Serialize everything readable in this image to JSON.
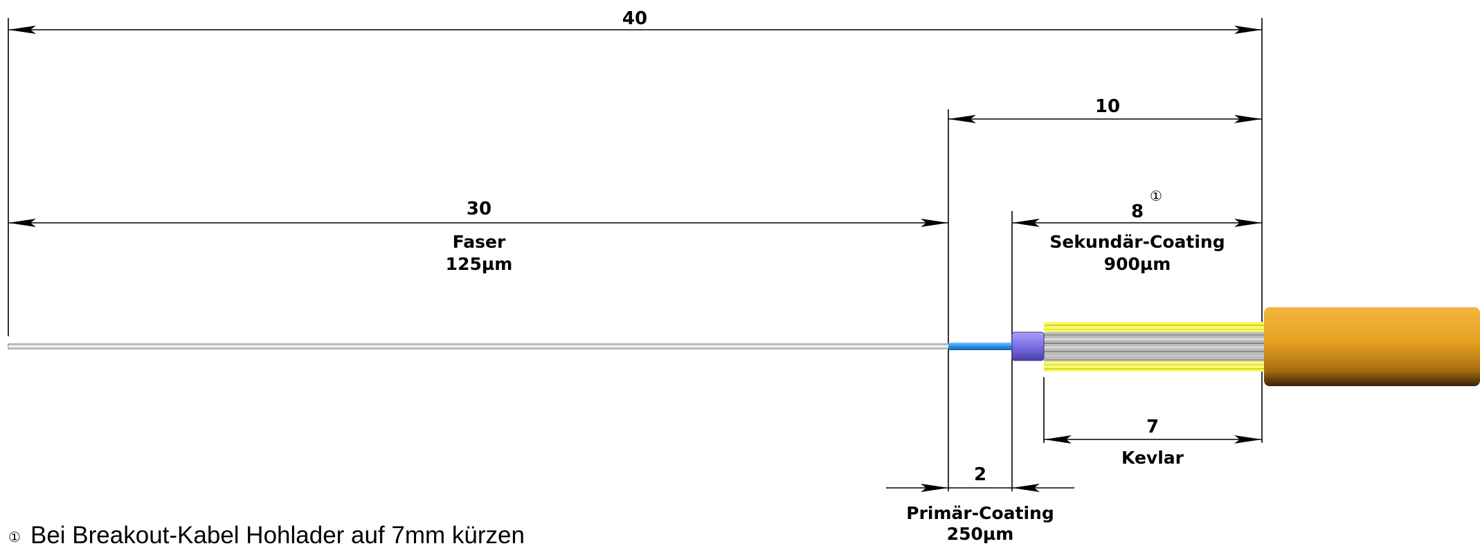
{
  "dimensions": {
    "total": {
      "value": "40"
    },
    "strip": {
      "value": "10"
    },
    "fiber": {
      "value": "30",
      "label": "Faser",
      "size": "125µm"
    },
    "secondary_coating": {
      "value": "8",
      "marker": "①",
      "label": "Sekundär-Coating",
      "size": "900µm"
    },
    "kevlar": {
      "value": "7",
      "label": "Kevlar"
    },
    "primary_coating": {
      "value": "2",
      "label": "Primär-Coating",
      "size": "250µm"
    }
  },
  "note": {
    "marker": "①",
    "text": "Bei Breakout-Kabel Hohlader auf 7mm kürzen"
  },
  "colors": {
    "fiber": "#9a9a9a",
    "primary_coating": "#2b8fe6",
    "secondary_coating": "#7b6fe8",
    "kevlar": "#f2f24a",
    "jacket": "#e8a020"
  }
}
